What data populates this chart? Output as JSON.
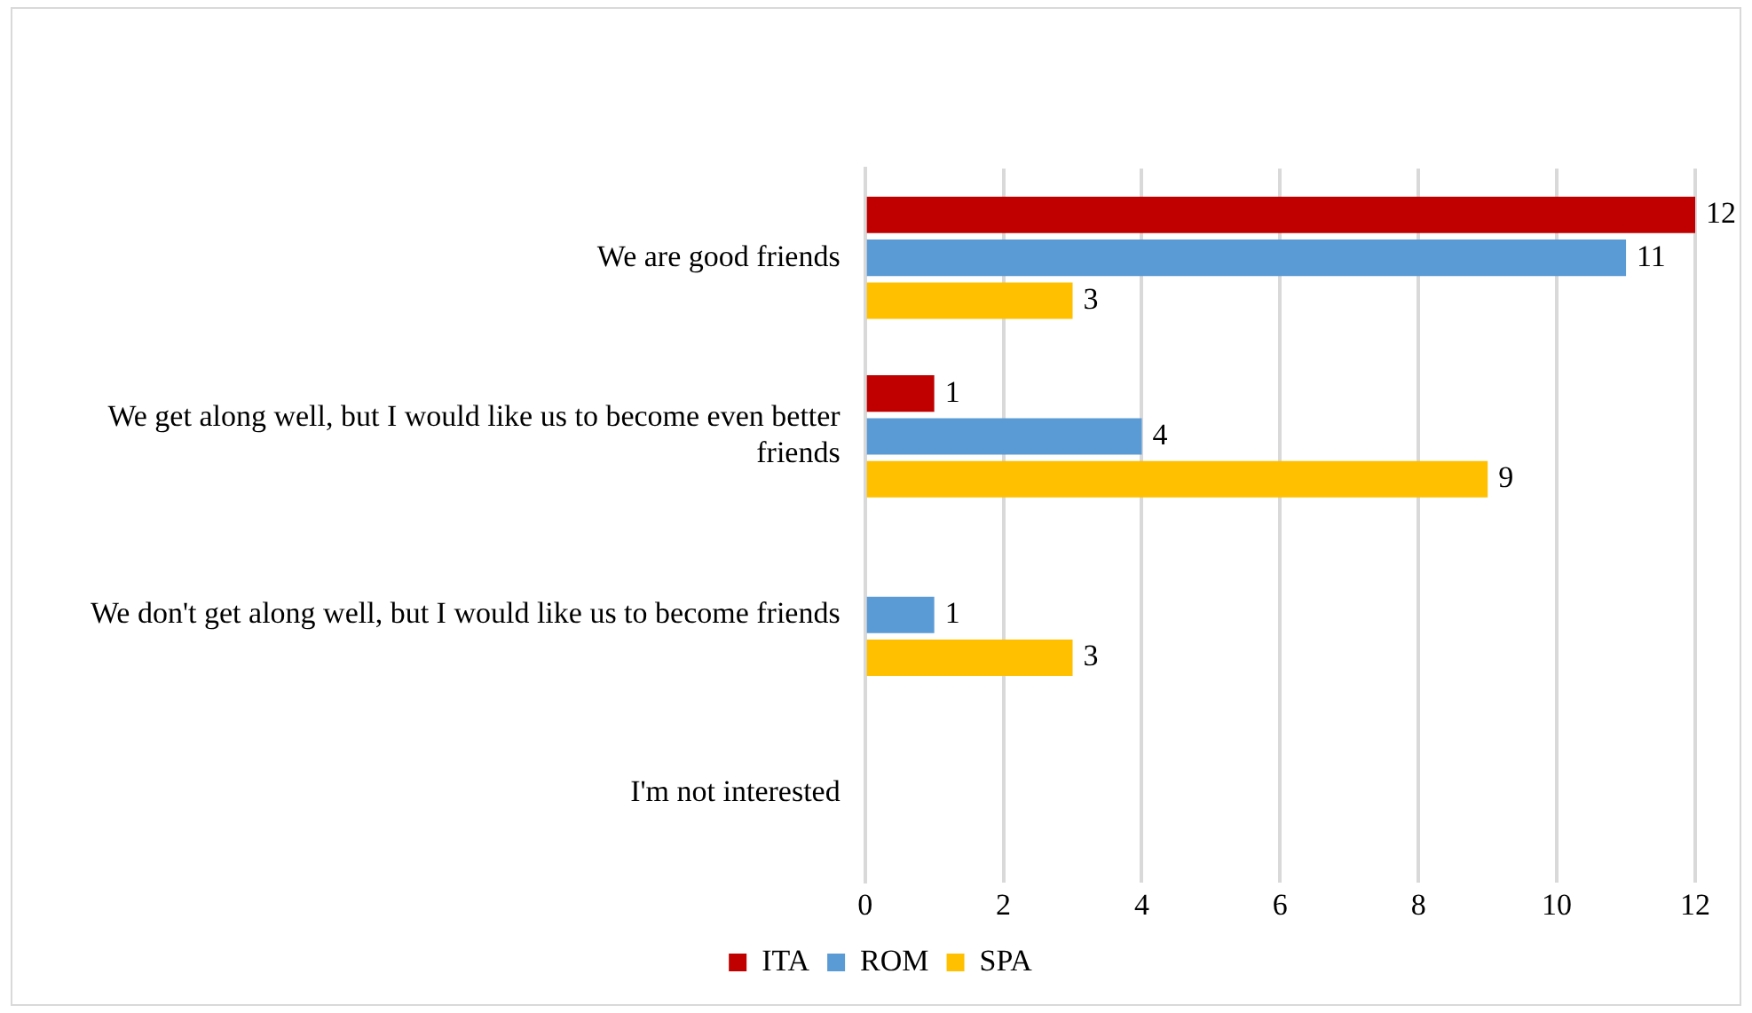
{
  "chart_data": {
    "type": "bar",
    "orientation": "horizontal",
    "categories": [
      "We are good friends",
      "We get along well, but I would like us to become even better friends",
      "We don't get along well, but I would like us to become friends",
      "I'm not interested"
    ],
    "series": [
      {
        "name": "ITA",
        "color": "#c00000",
        "values": [
          12,
          1,
          null,
          null
        ]
      },
      {
        "name": "ROM",
        "color": "#5b9bd5",
        "values": [
          11,
          4,
          1,
          null
        ]
      },
      {
        "name": "SPA",
        "color": "#ffc000",
        "values": [
          3,
          9,
          3,
          null
        ]
      }
    ],
    "xlim": [
      0,
      12
    ],
    "xticks": [
      0,
      2,
      4,
      6,
      8,
      10,
      12
    ],
    "grid": "x",
    "legend": "bottom",
    "data_labels": true
  }
}
